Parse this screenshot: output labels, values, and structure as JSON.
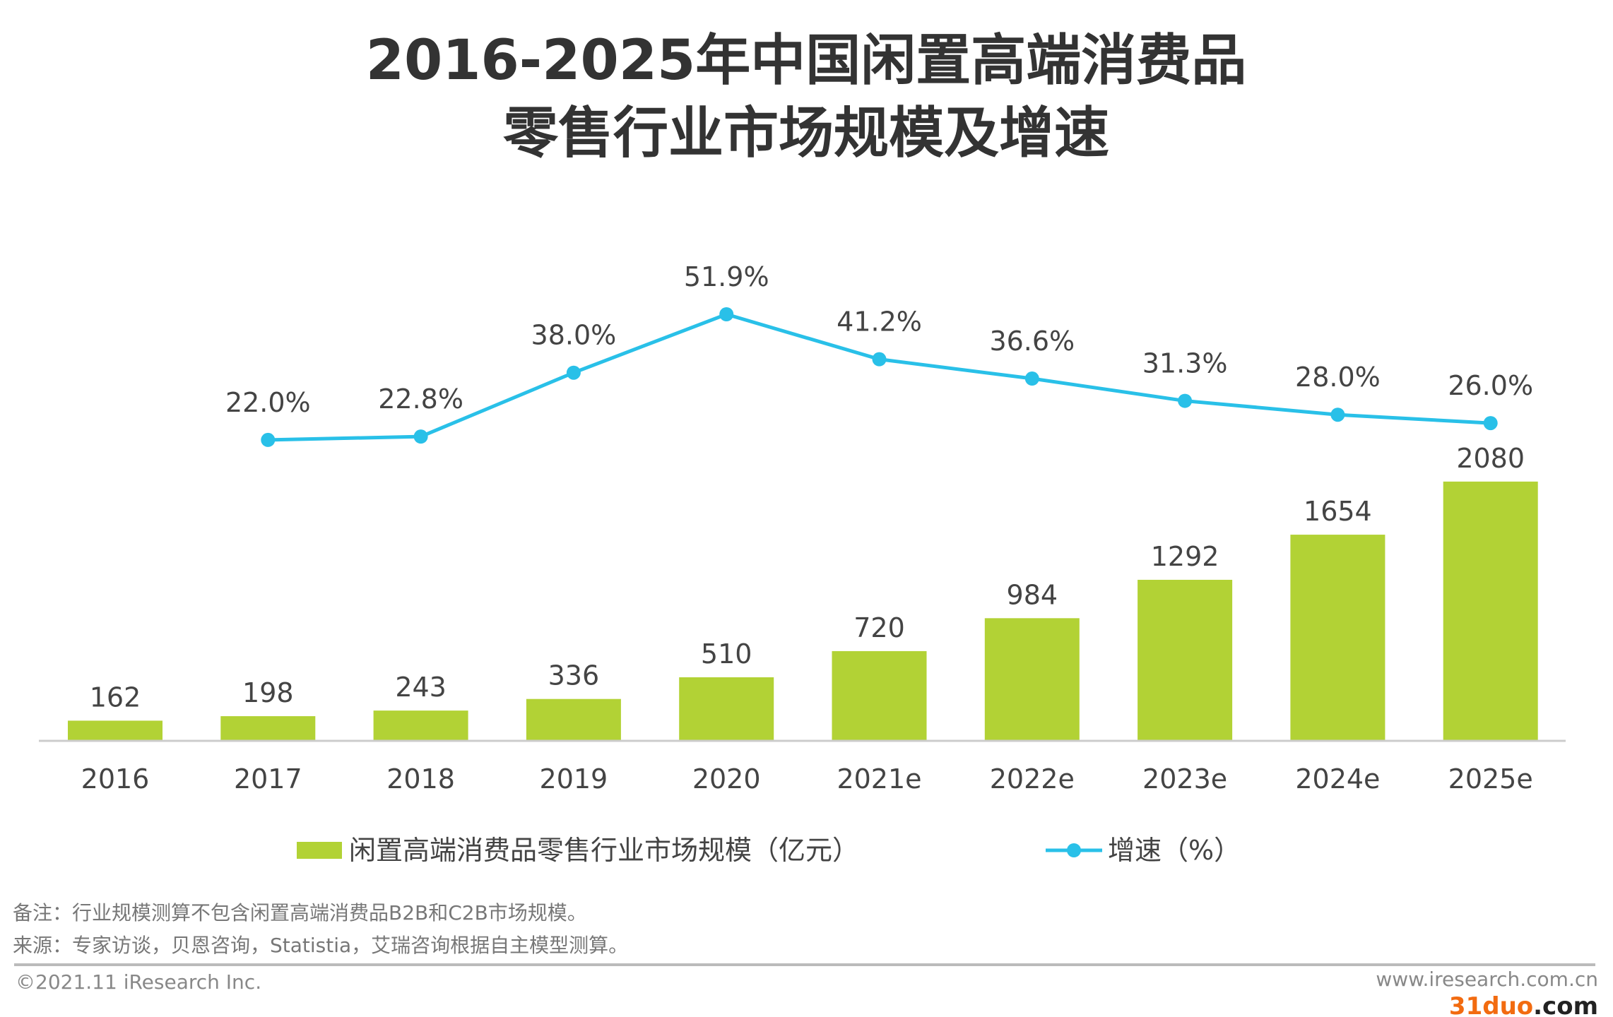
{
  "chart_data": {
    "type": "bar+line",
    "title": [
      "2016-2025年中国闲置高端消费品",
      "零售行业市场规模及增速"
    ],
    "categories": [
      "2016",
      "2017",
      "2018",
      "2019",
      "2020",
      "2021e",
      "2022e",
      "2023e",
      "2024e",
      "2025e"
    ],
    "series": [
      {
        "name": "闲置高端消费品零售行业市场规模（亿元）",
        "type": "bar",
        "color": "#b2d235",
        "values": [
          162,
          198,
          243,
          336,
          510,
          720,
          984,
          1292,
          1654,
          2080
        ],
        "labels": [
          "162",
          "198",
          "243",
          "336",
          "510",
          "720",
          "984",
          "1292",
          "1654",
          "2080"
        ]
      },
      {
        "name": "增速（%）",
        "type": "line",
        "color": "#29c0e8",
        "values": [
          null,
          22.0,
          22.8,
          38.0,
          51.9,
          41.2,
          36.6,
          31.3,
          28.0,
          26.0
        ],
        "labels": [
          "",
          "22.0%",
          "22.8%",
          "38.0%",
          "51.9%",
          "41.2%",
          "36.6%",
          "31.3%",
          "28.0%",
          "26.0%"
        ]
      }
    ],
    "legend_position": "bottom",
    "grid": false
  },
  "notes": {
    "remark": "备注：行业规模测算不包含闲置高端消费品B2B和C2B市场规模。",
    "source": "来源：专家访谈，贝恩咨询，Statistia，艾瑞咨询根据自主模型测算。"
  },
  "footer": {
    "copyright": "©2021.11 iResearch Inc.",
    "website": "www.iresearch.com.cn",
    "watermark_main": "31duo",
    "watermark_suffix": ".com"
  }
}
